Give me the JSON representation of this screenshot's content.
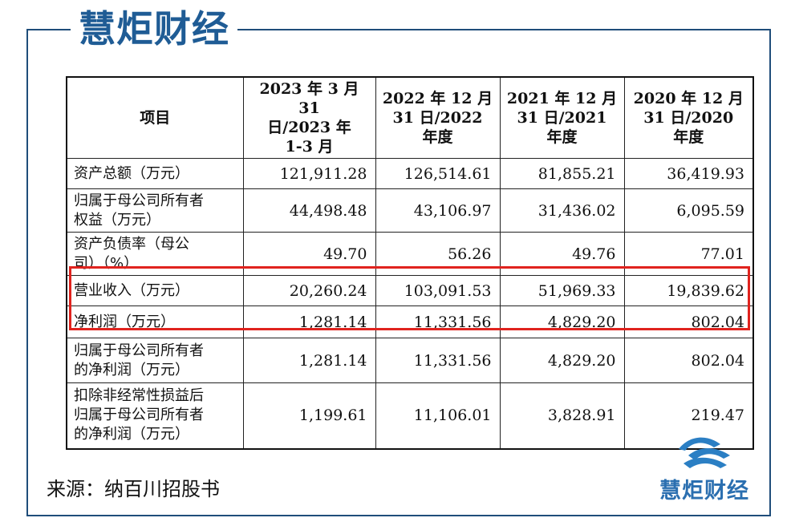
{
  "brand": {
    "name": "慧炬财经"
  },
  "table": {
    "headers": [
      "项目",
      "2023 年 3 月 31 日/2023 年 1-3 月",
      "2022 年 12 月 31 日/2022 年度",
      "2021 年 12 月 31 日/2021 年度",
      "2020 年 12 月 31 日/2020 年度"
    ],
    "header_lines": [
      [
        "项目"
      ],
      [
        "2023 年 3 月 31",
        "日/2023 年",
        "1-3 月"
      ],
      [
        "2022 年 12 月",
        "31 日/2022",
        "年度"
      ],
      [
        "2021 年 12 月",
        "31 日/2021",
        "年度"
      ],
      [
        "2020 年 12 月",
        "31 日/2020",
        "年度"
      ]
    ],
    "rows": [
      {
        "label_lines": [
          "资产总额（万元）"
        ],
        "values": [
          "121,911.28",
          "126,514.61",
          "81,855.21",
          "36,419.93"
        ]
      },
      {
        "label_lines": [
          "归属于母公司所有者",
          "权益（万元）"
        ],
        "values": [
          "44,498.48",
          "43,106.97",
          "31,436.02",
          "6,095.59"
        ]
      },
      {
        "label_lines": [
          "资产负债率（母公",
          "司）（%）"
        ],
        "values": [
          "49.70",
          "56.26",
          "49.76",
          "77.01"
        ]
      },
      {
        "label_lines": [
          "营业收入（万元）"
        ],
        "values": [
          "20,260.24",
          "103,091.53",
          "51,969.33",
          "19,839.62"
        ],
        "highlighted": true
      },
      {
        "label_lines": [
          "净利润（万元）"
        ],
        "values": [
          "1,281.14",
          "11,331.56",
          "4,829.20",
          "802.04"
        ],
        "highlighted": true
      },
      {
        "label_lines": [
          "归属于母公司所有者",
          "的净利润（万元）"
        ],
        "values": [
          "1,281.14",
          "11,331.56",
          "4,829.20",
          "802.04"
        ]
      },
      {
        "label_lines": [
          "扣除非经常性损益后",
          "归属于母公司所有者",
          "的净利润（万元）"
        ],
        "values": [
          "1,199.61",
          "11,106.01",
          "3,828.91",
          "219.47"
        ]
      }
    ]
  },
  "source": "来源：纳百川招股书",
  "colors": {
    "brand_blue": "#1f5c95",
    "frame": "#1f4d7a",
    "highlight": "#e0231e"
  }
}
